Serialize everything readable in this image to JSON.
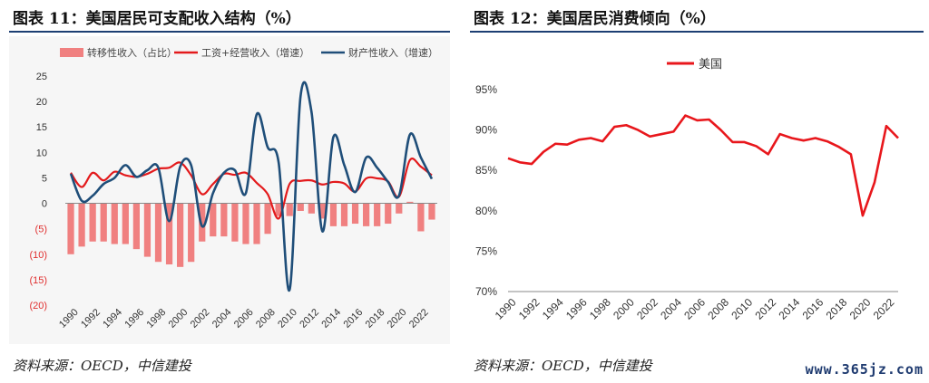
{
  "left": {
    "title": "图表 11：美国居民可支配收入结构（%）",
    "source": "资料来源：OECD，中信建投",
    "chart_data": {
      "type": "bar",
      "x": [
        1990,
        1991,
        1992,
        1993,
        1994,
        1995,
        1996,
        1997,
        1998,
        1999,
        2000,
        2001,
        2002,
        2003,
        2004,
        2005,
        2006,
        2007,
        2008,
        2009,
        2010,
        2011,
        2012,
        2013,
        2014,
        2015,
        2016,
        2017,
        2018,
        2019,
        2020,
        2021,
        2022,
        2023
      ],
      "x_tick_labels": [
        "1990",
        "1992",
        "1994",
        "1996",
        "1998",
        "2000",
        "2002",
        "2004",
        "2006",
        "2008",
        "2010",
        "2012",
        "2014",
        "2016",
        "2018",
        "2020",
        "2022"
      ],
      "ylim": [
        -20,
        25
      ],
      "y_tick_labels": [
        "25",
        "20",
        "15",
        "10",
        "5",
        "0",
        "(5)",
        "(10)",
        "(15)",
        "(20)"
      ],
      "legend_position": "top",
      "series": [
        {
          "name": "转移性收入（占比）",
          "type": "bar",
          "color": "#f08080",
          "values": [
            -10,
            -8.5,
            -7.5,
            -7.5,
            -8,
            -8,
            -9,
            -10.5,
            -11.5,
            -12,
            -12.5,
            -11.5,
            -7.5,
            -6.5,
            -6.5,
            -7.5,
            -8,
            -8,
            -6,
            -2.5,
            -2.5,
            -1.5,
            -2,
            -3,
            -4.5,
            -4.5,
            -4,
            -4.5,
            -4.5,
            -4,
            -2,
            0.3,
            -5.5,
            -3.2
          ]
        },
        {
          "name": "工资+经营收入（增速）",
          "type": "line",
          "color": "#e31a1c",
          "values": [
            6,
            3.2,
            6,
            4.5,
            6.2,
            5.5,
            5.2,
            5.8,
            6.8,
            7,
            8,
            5.5,
            1.8,
            3.8,
            5.8,
            5.6,
            6,
            4,
            1.8,
            -3,
            3.8,
            4.4,
            4.5,
            3.7,
            4.2,
            3.9,
            2.3,
            4.9,
            4.9,
            4.3,
            1.3,
            8.5,
            7.2,
            5.5
          ]
        },
        {
          "name": "财产性收入（增速）",
          "type": "line",
          "color": "#1f4e79",
          "values": [
            5.8,
            0.5,
            1.5,
            3.8,
            5,
            7.5,
            5.2,
            6.5,
            7,
            -3.5,
            7.2,
            7.5,
            -4.5,
            2,
            6,
            6.5,
            2,
            17.5,
            11,
            8,
            -17,
            21,
            18,
            -5.5,
            13,
            7.5,
            2.2,
            9,
            7,
            4.2,
            1.5,
            13.5,
            9,
            4.8
          ]
        }
      ]
    }
  },
  "right": {
    "title": "图表 12：美国居民消费倾向（%）",
    "source": "资料来源：OECD，中信建投",
    "chart_data": {
      "type": "line",
      "x": [
        1990,
        1991,
        1992,
        1993,
        1994,
        1995,
        1996,
        1997,
        1998,
        1999,
        2000,
        2001,
        2002,
        2003,
        2004,
        2005,
        2006,
        2007,
        2008,
        2009,
        2010,
        2011,
        2012,
        2013,
        2014,
        2015,
        2016,
        2017,
        2018,
        2019,
        2020,
        2021,
        2022,
        2023
      ],
      "x_tick_labels": [
        "1990",
        "1992",
        "1994",
        "1996",
        "1998",
        "2000",
        "2002",
        "2004",
        "2006",
        "2008",
        "2010",
        "2012",
        "2014",
        "2016",
        "2018",
        "2020",
        "2022"
      ],
      "ylim": [
        70,
        95
      ],
      "y_tick_labels": [
        "95%",
        "90%",
        "85%",
        "80%",
        "75%",
        "70%"
      ],
      "legend_position": "top-left",
      "series": [
        {
          "name": "美国",
          "color": "#e8171c",
          "values": [
            86.5,
            86.0,
            85.8,
            87.3,
            88.3,
            88.2,
            88.8,
            89.0,
            88.6,
            90.4,
            90.6,
            90.0,
            89.2,
            89.5,
            89.8,
            91.8,
            91.2,
            91.3,
            90.0,
            88.5,
            88.5,
            88.0,
            87.0,
            89.5,
            89.0,
            88.7,
            89.0,
            88.6,
            87.9,
            87.0,
            79.4,
            83.5,
            90.5,
            89.0
          ]
        }
      ]
    }
  },
  "watermark": "www.365jz.com"
}
